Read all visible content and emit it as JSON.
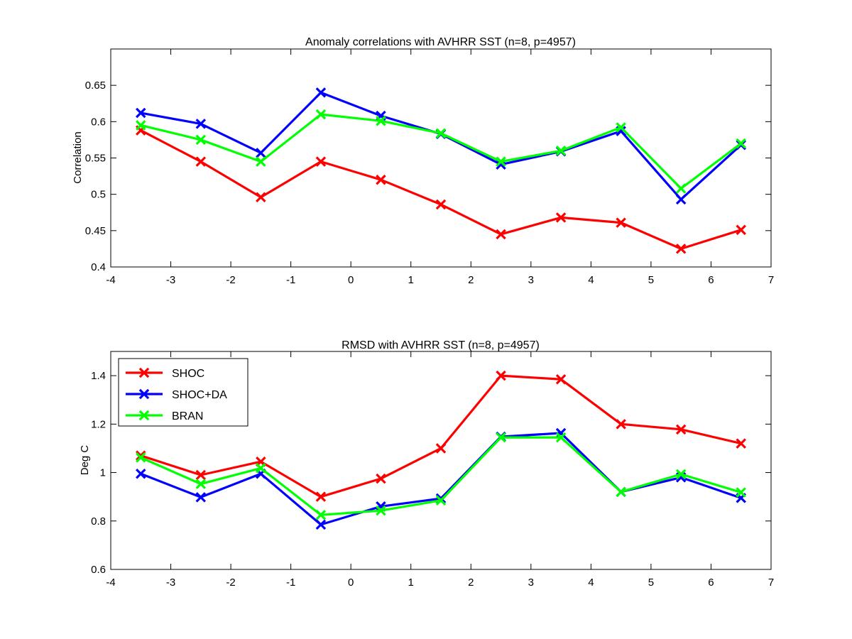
{
  "chart_data": [
    {
      "type": "line",
      "title": "Anomaly correlations with AVHRR SST (n=8, p=4957)",
      "xlabel": "",
      "ylabel": "Correlation",
      "xlim": [
        -4,
        7
      ],
      "ylim": [
        0.4,
        0.7
      ],
      "xticks": [
        -4,
        -3,
        -2,
        -1,
        0,
        1,
        2,
        3,
        4,
        5,
        6,
        7
      ],
      "xtick_labels": [
        "-4",
        "-3",
        "-2",
        "-1",
        "0",
        "1",
        "2",
        "3",
        "4",
        "5",
        "6",
        "7"
      ],
      "yticks": [
        0.4,
        0.45,
        0.5,
        0.55,
        0.6,
        0.65
      ],
      "ytick_labels": [
        "0.4",
        "0.45",
        "0.5",
        "0.55",
        "0.6",
        "0.65"
      ],
      "grid": false,
      "legend": null,
      "x": [
        -3.5,
        -2.5,
        -1.5,
        -0.5,
        0.5,
        1.5,
        2.5,
        3.5,
        4.5,
        5.5,
        6.5
      ],
      "series": [
        {
          "name": "SHOC",
          "color": "#ff0000",
          "values": [
            0.588,
            0.545,
            0.496,
            0.545,
            0.52,
            0.486,
            0.445,
            0.468,
            0.461,
            0.425,
            0.451
          ]
        },
        {
          "name": "SHOC+DA",
          "color": "#0000ff",
          "values": [
            0.612,
            0.597,
            0.557,
            0.64,
            0.608,
            0.583,
            0.541,
            0.559,
            0.587,
            0.493,
            0.568
          ]
        },
        {
          "name": "BRAN",
          "color": "#00ff00",
          "values": [
            0.595,
            0.575,
            0.545,
            0.61,
            0.601,
            0.584,
            0.545,
            0.56,
            0.592,
            0.508,
            0.57
          ]
        }
      ]
    },
    {
      "type": "line",
      "title": "RMSD with AVHRR SST (n=8, p=4957)",
      "xlabel": "",
      "ylabel": "Deg C",
      "xlim": [
        -4,
        7
      ],
      "ylim": [
        0.6,
        1.5
      ],
      "xticks": [
        -4,
        -3,
        -2,
        -1,
        0,
        1,
        2,
        3,
        4,
        5,
        6,
        7
      ],
      "xtick_labels": [
        "-4",
        "-3",
        "-2",
        "-1",
        "0",
        "1",
        "2",
        "3",
        "4",
        "5",
        "6",
        "7"
      ],
      "yticks": [
        0.6,
        0.8,
        1.0,
        1.2,
        1.4
      ],
      "ytick_labels": [
        "0.6",
        "0.8",
        "1",
        "1.2",
        "1.4"
      ],
      "grid": false,
      "legend": "top-left",
      "x": [
        -3.5,
        -2.5,
        -1.5,
        -0.5,
        0.5,
        1.5,
        2.5,
        3.5,
        4.5,
        5.5,
        6.5
      ],
      "series": [
        {
          "name": "SHOC",
          "color": "#ff0000",
          "values": [
            1.07,
            0.99,
            1.045,
            0.9,
            0.975,
            1.1,
            1.4,
            1.385,
            1.2,
            1.178,
            1.12
          ]
        },
        {
          "name": "SHOC+DA",
          "color": "#0000ff",
          "values": [
            0.995,
            0.898,
            0.995,
            0.785,
            0.86,
            0.893,
            1.148,
            1.163,
            0.92,
            0.98,
            0.895
          ]
        },
        {
          "name": "BRAN",
          "color": "#00ff00",
          "values": [
            1.062,
            0.953,
            1.018,
            0.825,
            0.843,
            0.885,
            1.145,
            1.145,
            0.92,
            0.993,
            0.918
          ]
        }
      ]
    }
  ]
}
